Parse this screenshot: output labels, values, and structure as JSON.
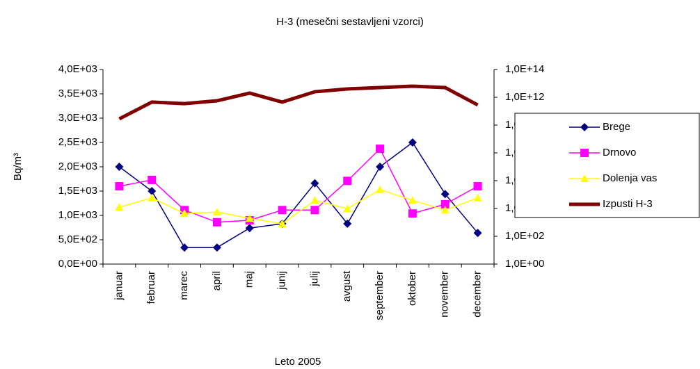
{
  "chart_data": {
    "type": "line",
    "title": "H-3  (mesečni sestavljeni vzorci)",
    "x_label": "Leto 2005",
    "y_label": "Bq/m³",
    "categories": [
      "januar",
      "februar",
      "marec",
      "april",
      "maj",
      "junij",
      "julij",
      "avgust",
      "september",
      "oktober",
      "november",
      "december"
    ],
    "series": [
      {
        "name": "Brege",
        "color": "#000080",
        "marker": "diamond",
        "values": [
          2000,
          1500,
          340,
          340,
          740,
          830,
          1660,
          830,
          2000,
          2500,
          1440,
          640
        ]
      },
      {
        "name": "Drnovo",
        "color": "#ff00ff",
        "marker": "square",
        "values": [
          1600,
          1730,
          1110,
          860,
          900,
          1110,
          1110,
          1710,
          2370,
          1040,
          1230,
          1600
        ]
      },
      {
        "name": "Dolenja vas",
        "color": "#ffff00",
        "marker": "triangle",
        "values": [
          1170,
          1360,
          1040,
          1070,
          940,
          830,
          1310,
          1140,
          1530,
          1310,
          1110,
          1360
        ]
      },
      {
        "name": "Izpusti H-3",
        "color": "#800000",
        "axis": "y2",
        "values": [
          28000000000.0,
          450000000000.0,
          350000000000.0,
          560000000000.0,
          2000000000000.0,
          450000000000.0,
          2500000000000.0,
          4000000000000.0,
          5000000000000.0,
          6300000000000.0,
          5000000000000.0,
          280000000000.0
        ]
      }
    ],
    "ylim": [
      0,
      4000
    ],
    "yticks": [
      {
        "value": 0,
        "label": "0,0E+00"
      },
      {
        "value": 500,
        "label": "5,0E+02"
      },
      {
        "value": 1000,
        "label": "1,0E+03"
      },
      {
        "value": 1500,
        "label": "1,5E+03"
      },
      {
        "value": 2000,
        "label": "2,0E+03"
      },
      {
        "value": 2500,
        "label": "2,5E+03"
      },
      {
        "value": 3000,
        "label": "3,0E+03"
      },
      {
        "value": 3500,
        "label": "3,5E+03"
      },
      {
        "value": 4000,
        "label": "4,0E+03"
      }
    ],
    "y2lim": [
      1,
      100000000000000.0
    ],
    "y2scale": "log",
    "y2ticks": [
      {
        "value": 1,
        "label": "1,0E+00"
      },
      {
        "value": 100,
        "label": "1,0E+02"
      },
      {
        "value": 10000,
        "label": "1,0E+04"
      },
      {
        "value": 1000000,
        "label": "1,0E+06"
      },
      {
        "value": 100000000,
        "label": "1,0E+08"
      },
      {
        "value": 10000000000,
        "label": "1,0E+10"
      },
      {
        "value": 1000000000000,
        "label": "1,0E+12"
      },
      {
        "value": 100000000000000,
        "label": "1,0E+14"
      }
    ],
    "legend": "right"
  }
}
